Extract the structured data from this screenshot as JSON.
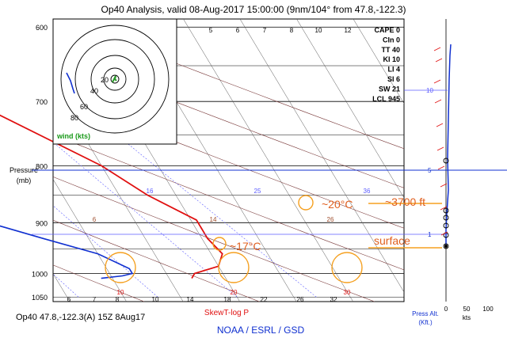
{
  "title": "Op40 Analysis, valid 08-Aug-2017 15:00:00 (9nm/104° from 47.8,-122.3)",
  "footer_left": "Op40 47.8,-122.3(A) 15Z 8Aug17",
  "footer_center": "NOAA / ESRL / GSD",
  "chart_label": "SkewT-log P",
  "y_axis_title": [
    "Pressure",
    "(mb)"
  ],
  "pressure_ticks": [
    "600",
    "700",
    "800",
    "900",
    "1000",
    "1050"
  ],
  "x_temp_ticks": [
    "6",
    "7",
    "8",
    "10",
    "14",
    "18",
    "22",
    "26",
    "32"
  ],
  "top_temp_ticks": [
    "5",
    "6",
    "7",
    "8",
    "10",
    "12"
  ],
  "isotherm_labels": [
    "10",
    "20",
    "30"
  ],
  "mixing_labels_blue": [
    "16",
    "25",
    "36"
  ],
  "mixing_labels_brown": [
    "6",
    "14",
    "26"
  ],
  "indices": [
    {
      "name": "CAPE",
      "value": "0"
    },
    {
      "name": "CIn",
      "value": "0"
    },
    {
      "name": "TT",
      "value": "40"
    },
    {
      "name": "KI",
      "value": "10"
    },
    {
      "name": "LI",
      "value": "4"
    },
    {
      "name": "SI",
      "value": "6"
    },
    {
      "name": "SW",
      "value": "21"
    },
    {
      "name": "LCL",
      "value": "945"
    }
  ],
  "hodograph": {
    "rings": [
      "20",
      "40",
      "60",
      "80"
    ],
    "label": "wind (kts)"
  },
  "press_alt": {
    "ticks": [
      "10",
      "5",
      "1"
    ],
    "axis_label": [
      "Press Alt.",
      "(Kft.)"
    ],
    "wind_ticks": [
      "0",
      "50",
      "100"
    ],
    "wind_unit": "kts"
  },
  "annotations": {
    "t20": "~20°C",
    "ft": "~3700 ft",
    "t17": "~17°C",
    "surface": "surface"
  },
  "colors": {
    "temperature": "#e01010",
    "dewpoint": "#1030d0",
    "isotherm": "#c8c8c8",
    "dry_adiabat": "#7a3a3a",
    "mixing_ratio": "#5c5cff",
    "annotation": "#f5a020",
    "annotation_text": "#e06020"
  },
  "chart_data": {
    "type": "line",
    "title": "Op40 Analysis, valid 08-Aug-2017 15:00:00 (9nm/104° from 47.8,-122.3)",
    "xlabel": "",
    "ylabel": "Pressure (mb)",
    "ylim": [
      1060,
      590
    ],
    "log_scale_y": true,
    "series": [
      {
        "profile": "temperature",
        "pressure_mb": [
          1010,
          1000,
          985,
          960,
          930,
          895,
          880,
          850,
          800,
          700,
          625
        ],
        "temp_c": [
          17,
          17.5,
          20,
          21,
          20.5,
          20.5,
          19.5,
          17.5,
          15,
          7,
          -1
        ]
      },
      {
        "profile": "dewpoint",
        "pressure_mb": [
          1010,
          1005,
          1000,
          990,
          960,
          930,
          900,
          880,
          860,
          850
        ],
        "temp_c": [
          9,
          11,
          12,
          12,
          10,
          6,
          2,
          -4,
          -16,
          -20
        ]
      }
    ]
  }
}
